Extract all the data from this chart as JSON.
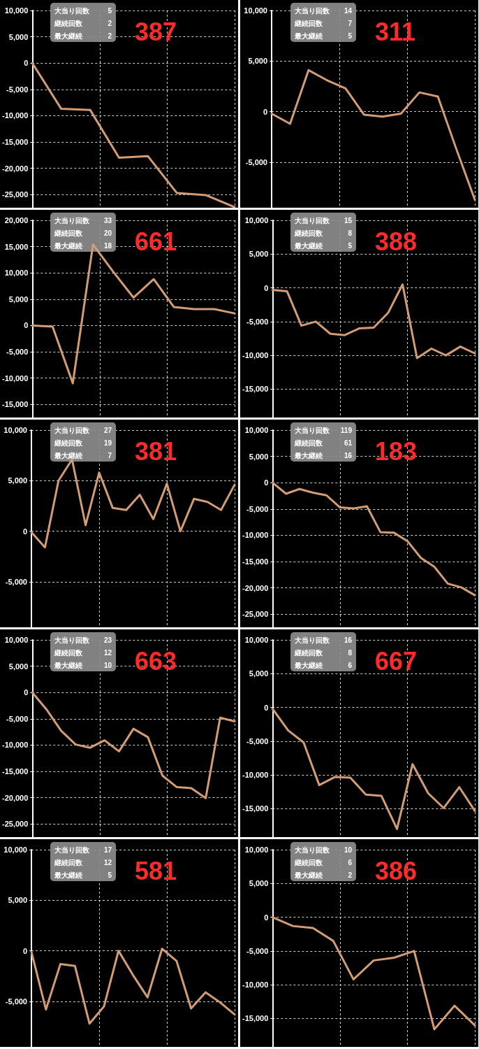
{
  "chart_data": [
    {
      "type": "line",
      "title": "387",
      "annotations": [
        "大当り回数",
        "5",
        "継続回数",
        "2",
        "最大継続",
        "2"
      ],
      "categories": [
        null,
        null,
        null,
        null,
        null,
        null,
        null,
        null
      ],
      "values": [
        0,
        -8700,
        -8900,
        -18000,
        -17700,
        -24700,
        -25100,
        -27400
      ],
      "color": "#d29c74",
      "ylim": [
        -27500,
        10000
      ],
      "yticks": [
        {
          "value": 10000,
          "label": "10,000"
        },
        {
          "value": 5000,
          "label": "5,000"
        },
        {
          "value": 0,
          "label": "0"
        },
        {
          "value": -5000,
          "label": "-5,000"
        },
        {
          "value": -10000,
          "label": "-10,000"
        },
        {
          "value": -15000,
          "label": "-15,000"
        },
        {
          "value": -20000,
          "label": "-20,000"
        },
        {
          "value": -25000,
          "label": "-25,000"
        }
      ],
      "grid": true,
      "tick_labels": "y",
      "marker": "none",
      "line_style": "solid"
    },
    {
      "type": "line",
      "title": "311",
      "annotations": [
        "大当り回数",
        "14",
        "継続回数",
        "7",
        "最大継続",
        "5"
      ],
      "categories": [
        null,
        null,
        null,
        null,
        null,
        null,
        null,
        null,
        null,
        null,
        null,
        null
      ],
      "values": [
        -200,
        -1200,
        4100,
        3100,
        2300,
        -300,
        -500,
        -200,
        1900,
        1500,
        -3700,
        -8700
      ],
      "color": "#d29c74",
      "ylim": [
        -9500,
        10000
      ],
      "yticks": [
        {
          "value": 10000,
          "label": "10,000"
        },
        {
          "value": 5000,
          "label": "5,000"
        },
        {
          "value": 0,
          "label": "0"
        },
        {
          "value": -5000,
          "label": "-5,000"
        }
      ],
      "grid": true,
      "tick_labels": "y",
      "marker": "none",
      "line_style": "solid"
    },
    {
      "type": "line",
      "title": "661",
      "annotations": [
        "大当り回数",
        "33",
        "継続回数",
        "20",
        "最大継続",
        "18"
      ],
      "categories": [
        null,
        null,
        null,
        null,
        null,
        null,
        null,
        null,
        null,
        null,
        null
      ],
      "values": [
        0,
        -200,
        -11000,
        15400,
        10200,
        5300,
        8800,
        3500,
        3100,
        3100,
        2300
      ],
      "color": "#d29c74",
      "ylim": [
        -17500,
        20000
      ],
      "yticks": [
        {
          "value": 20000,
          "label": "20,000"
        },
        {
          "value": 15000,
          "label": "15,000"
        },
        {
          "value": 10000,
          "label": "10,000"
        },
        {
          "value": 5000,
          "label": "5,000"
        },
        {
          "value": 0,
          "label": "0"
        },
        {
          "value": -5000,
          "label": "-5,000"
        },
        {
          "value": -10000,
          "label": "-10,000"
        },
        {
          "value": -15000,
          "label": "-15,000"
        }
      ],
      "grid": true,
      "tick_labels": "y",
      "marker": "none",
      "line_style": "solid"
    },
    {
      "type": "line",
      "title": "388",
      "annotations": [
        "大当り回数",
        "15",
        "継続回数",
        "8",
        "最大継続",
        "5"
      ],
      "categories": [
        null,
        null,
        null,
        null,
        null,
        null,
        null,
        null,
        null,
        null,
        null,
        null,
        null,
        null,
        null
      ],
      "values": [
        -300,
        -500,
        -5600,
        -5000,
        -6800,
        -7000,
        -6000,
        -5900,
        -3700,
        500,
        -10400,
        -9000,
        -10000,
        -8700,
        -9700
      ],
      "color": "#d29c74",
      "ylim": [
        -19200,
        10000
      ],
      "yticks": [
        {
          "value": 10000,
          "label": "10,000"
        },
        {
          "value": 5000,
          "label": "5,000"
        },
        {
          "value": 0,
          "label": "0"
        },
        {
          "value": -5000,
          "label": "-5,000"
        },
        {
          "value": -10000,
          "label": "-10,000"
        },
        {
          "value": -15000,
          "label": "-15,000"
        }
      ],
      "grid": true,
      "tick_labels": "y",
      "marker": "none",
      "line_style": "solid"
    },
    {
      "type": "line",
      "title": "381",
      "annotations": [
        "大当り回数",
        "27",
        "継続回数",
        "19",
        "最大継続",
        "7"
      ],
      "categories": [
        null,
        null,
        null,
        null,
        null,
        null,
        null,
        null,
        null,
        null,
        null,
        null,
        null,
        null,
        null,
        null
      ],
      "values": [
        -100,
        -1600,
        5000,
        7100,
        600,
        5800,
        2300,
        2100,
        3600,
        1200,
        4700,
        0,
        3200,
        2900,
        2100,
        4600
      ],
      "color": "#d29c74",
      "ylim": [
        -9500,
        10000
      ],
      "yticks": [
        {
          "value": 10000,
          "label": "10,000"
        },
        {
          "value": 5000,
          "label": "5,000"
        },
        {
          "value": 0,
          "label": "0"
        },
        {
          "value": -5000,
          "label": "-5,000"
        }
      ],
      "grid": true,
      "tick_labels": "y",
      "marker": "none",
      "line_style": "solid"
    },
    {
      "type": "line",
      "title": "183",
      "annotations": [
        "大当り回数",
        "119",
        "継続回数",
        "61",
        "最大継続",
        "16"
      ],
      "categories": [
        null,
        null,
        null,
        null,
        null,
        null,
        null,
        null,
        null,
        null,
        null,
        null,
        null,
        null,
        null,
        null
      ],
      "values": [
        0,
        -2100,
        -1200,
        -1900,
        -2400,
        -4700,
        -4900,
        -4500,
        -9400,
        -9500,
        -11100,
        -14300,
        -16000,
        -19200,
        -19900,
        -21400
      ],
      "color": "#d29c74",
      "ylim": [
        -27500,
        10000
      ],
      "yticks": [
        {
          "value": 10000,
          "label": "10,000"
        },
        {
          "value": 5000,
          "label": "5,000"
        },
        {
          "value": 0,
          "label": "0"
        },
        {
          "value": -5000,
          "label": "-5,000"
        },
        {
          "value": -10000,
          "label": "-10,000"
        },
        {
          "value": -15000,
          "label": "-15,000"
        },
        {
          "value": -20000,
          "label": "-20,000"
        },
        {
          "value": -25000,
          "label": "-25,000"
        }
      ],
      "grid": true,
      "tick_labels": "y",
      "marker": "none",
      "line_style": "solid"
    },
    {
      "type": "line",
      "title": "663",
      "annotations": [
        "大当り回数",
        "23",
        "継続回数",
        "12",
        "最大継続",
        "10"
      ],
      "categories": [
        null,
        null,
        null,
        null,
        null,
        null,
        null,
        null,
        null,
        null,
        null,
        null,
        null,
        null,
        null
      ],
      "values": [
        0,
        -3300,
        -7300,
        -9900,
        -10500,
        -9100,
        -11200,
        -6900,
        -8500,
        -15800,
        -18000,
        -18200,
        -20100,
        -4800,
        -5500
      ],
      "color": "#d29c74",
      "ylim": [
        -27500,
        10000
      ],
      "yticks": [
        {
          "value": 10000,
          "label": "10,000"
        },
        {
          "value": 5000,
          "label": "5,000"
        },
        {
          "value": 0,
          "label": "0"
        },
        {
          "value": -5000,
          "label": "-5,000"
        },
        {
          "value": -10000,
          "label": "-10,000"
        },
        {
          "value": -15000,
          "label": "-15,000"
        },
        {
          "value": -20000,
          "label": "-20,000"
        },
        {
          "value": -25000,
          "label": "-25,000"
        }
      ],
      "grid": true,
      "tick_labels": "y",
      "marker": "none",
      "line_style": "solid"
    },
    {
      "type": "line",
      "title": "667",
      "annotations": [
        "大当り回数",
        "16",
        "継続回数",
        "8",
        "最大継続",
        "6"
      ],
      "categories": [
        null,
        null,
        null,
        null,
        null,
        null,
        null,
        null,
        null,
        null,
        null,
        null,
        null,
        null
      ],
      "values": [
        -200,
        -3400,
        -5200,
        -11500,
        -10300,
        -10400,
        -12900,
        -13100,
        -18000,
        -8400,
        -12700,
        -14900,
        -11800,
        -15300
      ],
      "color": "#d29c74",
      "ylim": [
        -19200,
        10000
      ],
      "yticks": [
        {
          "value": 10000,
          "label": "10,000"
        },
        {
          "value": 5000,
          "label": "5,000"
        },
        {
          "value": 0,
          "label": "0"
        },
        {
          "value": -5000,
          "label": "-5,000"
        },
        {
          "value": -10000,
          "label": "-10,000"
        },
        {
          "value": -15000,
          "label": "-15,000"
        }
      ],
      "grid": true,
      "tick_labels": "y",
      "marker": "none",
      "line_style": "solid"
    },
    {
      "type": "line",
      "title": "581",
      "annotations": [
        "大当り回数",
        "17",
        "継続回数",
        "12",
        "最大継続",
        "5"
      ],
      "categories": [
        null,
        null,
        null,
        null,
        null,
        null,
        null,
        null,
        null,
        null,
        null,
        null,
        null,
        null,
        null
      ],
      "values": [
        -100,
        -5800,
        -1300,
        -1500,
        -7200,
        -5500,
        0,
        -2400,
        -4600,
        200,
        -1000,
        -5700,
        -4100,
        -5100,
        -6300
      ],
      "color": "#d29c74",
      "ylim": [
        -9500,
        10000
      ],
      "yticks": [
        {
          "value": 10000,
          "label": "10,000"
        },
        {
          "value": 5000,
          "label": "5,000"
        },
        {
          "value": 0,
          "label": "0"
        },
        {
          "value": -5000,
          "label": "-5,000"
        }
      ],
      "grid": true,
      "tick_labels": "y",
      "marker": "none",
      "line_style": "solid"
    },
    {
      "type": "line",
      "title": "386",
      "annotations": [
        "大当り回数",
        "10",
        "継続回数",
        "6",
        "最大継続",
        "2"
      ],
      "categories": [
        null,
        null,
        null,
        null,
        null,
        null,
        null,
        null,
        null,
        null,
        null
      ],
      "values": [
        0,
        -1300,
        -1600,
        -3500,
        -9200,
        -6400,
        -6000,
        -5000,
        -16600,
        -13100,
        -16000
      ],
      "color": "#d29c74",
      "ylim": [
        -19200,
        10000
      ],
      "yticks": [
        {
          "value": 10000,
          "label": "10,000"
        },
        {
          "value": 5000,
          "label": "5,000"
        },
        {
          "value": 0,
          "label": "0"
        },
        {
          "value": -5000,
          "label": "-5,000"
        },
        {
          "value": -10000,
          "label": "-10,000"
        },
        {
          "value": -15000,
          "label": "-15,000"
        }
      ],
      "grid": true,
      "tick_labels": "y",
      "marker": "none",
      "line_style": "solid"
    }
  ]
}
